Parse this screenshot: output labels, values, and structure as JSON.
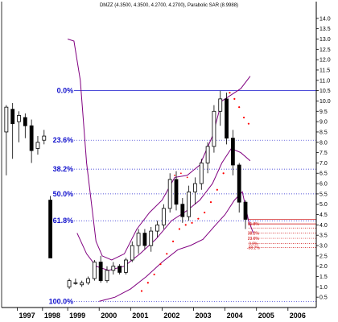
{
  "chart_data": {
    "type": "candlestick",
    "title": "DMZZ (4.3500, 4.3500, 4.2700, 4.2700), Parabolic SAR (8.9988)",
    "ylim": [
      0,
      14.5
    ],
    "y_ticks": [
      0.5,
      1.0,
      1.5,
      2.0,
      2.5,
      3.0,
      3.5,
      4.0,
      4.5,
      5.0,
      5.5,
      6.0,
      6.5,
      7.0,
      7.5,
      8.0,
      8.5,
      9.0,
      9.5,
      10.0,
      10.5,
      11.0,
      11.5,
      12.0,
      12.5,
      13.0,
      13.5,
      14.0
    ],
    "x_labels": [
      {
        "label": "1997",
        "t": 1997.4
      },
      {
        "label": "1998",
        "t": 1998.2
      },
      {
        "label": "1999",
        "t": 1999.0
      },
      {
        "label": "2000",
        "t": 2000.0
      },
      {
        "label": "2001",
        "t": 2001.0
      },
      {
        "label": "2002",
        "t": 2002.0
      },
      {
        "label": "2003",
        "t": 2003.0
      },
      {
        "label": "2004",
        "t": 2004.0
      },
      {
        "label": "2005",
        "t": 2005.0
      },
      {
        "label": "2006",
        "t": 2006.0
      }
    ],
    "xlim": [
      1996.9,
      2006.9
    ],
    "fib_levels": [
      {
        "label": "0.0%",
        "value": 10.5
      },
      {
        "label": "23.6%",
        "value": 8.1
      },
      {
        "label": "38.2%",
        "value": 6.7
      },
      {
        "label": "50.0%",
        "value": 5.5
      },
      {
        "label": "61.8%",
        "value": 4.2
      },
      {
        "label": "100.0%",
        "value": 0.3
      }
    ],
    "right_fib_labels": [
      {
        "label": "61.8%",
        "value": 4.05
      },
      {
        "label": "38.2%",
        "value": 3.6
      },
      {
        "label": "23.6%",
        "value": 3.35
      },
      {
        "label": "0.0%",
        "value": 3.1
      },
      {
        "label": "-38.2%",
        "value": 2.9
      }
    ],
    "candles": [
      {
        "t": 1997.05,
        "o": 8.5,
        "h": 9.8,
        "l": 6.4,
        "c": 9.7
      },
      {
        "t": 1997.25,
        "o": 9.6,
        "h": 9.9,
        "l": 7.2,
        "c": 8.9
      },
      {
        "t": 1997.45,
        "o": 9.0,
        "h": 9.5,
        "l": 8.0,
        "c": 9.3
      },
      {
        "t": 1997.65,
        "o": 9.2,
        "h": 9.4,
        "l": 8.2,
        "c": 8.8
      },
      {
        "t": 1997.85,
        "o": 8.8,
        "h": 9.1,
        "l": 7.0,
        "c": 7.6
      },
      {
        "t": 1998.05,
        "o": 7.7,
        "h": 8.3,
        "l": 7.4,
        "c": 8.0
      },
      {
        "t": 1998.25,
        "o": 8.1,
        "h": 8.6,
        "l": 7.9,
        "c": 8.3
      },
      {
        "t": 1998.45,
        "o": 5.2,
        "h": 5.4,
        "l": 2.4,
        "c": 2.4
      },
      {
        "t": 1999.05,
        "o": 1.0,
        "h": 1.4,
        "l": 0.9,
        "c": 1.3
      },
      {
        "t": 1999.25,
        "o": 1.2,
        "h": 1.4,
        "l": 1.1,
        "c": 1.2
      },
      {
        "t": 1999.45,
        "o": 1.1,
        "h": 1.3,
        "l": 1.0,
        "c": 1.2
      },
      {
        "t": 1999.65,
        "o": 1.2,
        "h": 1.5,
        "l": 1.1,
        "c": 1.4
      },
      {
        "t": 1999.85,
        "o": 1.4,
        "h": 2.3,
        "l": 1.3,
        "c": 2.2
      },
      {
        "t": 2000.05,
        "o": 2.2,
        "h": 2.5,
        "l": 1.2,
        "c": 1.3
      },
      {
        "t": 2000.25,
        "o": 1.3,
        "h": 2.0,
        "l": 1.2,
        "c": 1.8
      },
      {
        "t": 2000.45,
        "o": 1.8,
        "h": 2.2,
        "l": 1.6,
        "c": 2.0
      },
      {
        "t": 2000.65,
        "o": 2.0,
        "h": 2.1,
        "l": 1.6,
        "c": 1.7
      },
      {
        "t": 2000.85,
        "o": 1.7,
        "h": 2.4,
        "l": 1.6,
        "c": 2.3
      },
      {
        "t": 2001.05,
        "o": 2.3,
        "h": 3.2,
        "l": 2.2,
        "c": 3.0
      },
      {
        "t": 2001.25,
        "o": 3.0,
        "h": 3.8,
        "l": 2.6,
        "c": 3.6
      },
      {
        "t": 2001.45,
        "o": 3.6,
        "h": 3.8,
        "l": 2.8,
        "c": 3.0
      },
      {
        "t": 2001.65,
        "o": 3.0,
        "h": 3.9,
        "l": 2.7,
        "c": 3.7
      },
      {
        "t": 2001.85,
        "o": 3.7,
        "h": 4.2,
        "l": 3.4,
        "c": 4.0
      },
      {
        "t": 2002.05,
        "o": 4.0,
        "h": 5.0,
        "l": 3.8,
        "c": 4.8
      },
      {
        "t": 2002.25,
        "o": 4.8,
        "h": 6.5,
        "l": 4.6,
        "c": 6.2
      },
      {
        "t": 2002.45,
        "o": 6.2,
        "h": 6.6,
        "l": 4.7,
        "c": 5.0
      },
      {
        "t": 2002.65,
        "o": 5.0,
        "h": 5.3,
        "l": 4.1,
        "c": 4.4
      },
      {
        "t": 2002.85,
        "o": 4.4,
        "h": 5.9,
        "l": 4.2,
        "c": 5.6
      },
      {
        "t": 2003.05,
        "o": 5.6,
        "h": 6.3,
        "l": 5.0,
        "c": 6.0
      },
      {
        "t": 2003.25,
        "o": 6.0,
        "h": 7.2,
        "l": 5.7,
        "c": 7.0
      },
      {
        "t": 2003.45,
        "o": 7.0,
        "h": 8.0,
        "l": 6.5,
        "c": 7.8
      },
      {
        "t": 2003.65,
        "o": 7.8,
        "h": 9.8,
        "l": 7.5,
        "c": 9.5
      },
      {
        "t": 2003.85,
        "o": 9.5,
        "h": 10.5,
        "l": 8.8,
        "c": 10.1
      },
      {
        "t": 2004.05,
        "o": 10.1,
        "h": 10.4,
        "l": 7.9,
        "c": 8.2
      },
      {
        "t": 2004.25,
        "o": 8.2,
        "h": 8.6,
        "l": 6.4,
        "c": 6.9
      },
      {
        "t": 2004.45,
        "o": 6.9,
        "h": 7.0,
        "l": 4.6,
        "c": 5.1
      },
      {
        "t": 2004.65,
        "o": 5.1,
        "h": 5.2,
        "l": 3.8,
        "c": 4.27
      }
    ],
    "upper_band": [
      {
        "t": 1999.0,
        "v": 13.0
      },
      {
        "t": 1999.2,
        "v": 12.9
      },
      {
        "t": 1999.4,
        "v": 11.0
      },
      {
        "t": 1999.6,
        "v": 7.0
      },
      {
        "t": 1999.9,
        "v": 3.2
      },
      {
        "t": 2000.1,
        "v": 2.5
      },
      {
        "t": 2000.4,
        "v": 2.3
      },
      {
        "t": 2000.8,
        "v": 2.6
      },
      {
        "t": 2001.2,
        "v": 3.8
      },
      {
        "t": 2001.6,
        "v": 4.6
      },
      {
        "t": 2002.0,
        "v": 5.2
      },
      {
        "t": 2002.4,
        "v": 6.3
      },
      {
        "t": 2002.8,
        "v": 6.4
      },
      {
        "t": 2003.2,
        "v": 6.9
      },
      {
        "t": 2003.6,
        "v": 8.3
      },
      {
        "t": 2003.9,
        "v": 10.0
      },
      {
        "t": 2004.2,
        "v": 10.3
      },
      {
        "t": 2004.5,
        "v": 10.6
      },
      {
        "t": 2004.8,
        "v": 11.2
      }
    ],
    "middle_band": [
      {
        "t": 1999.3,
        "v": 3.6
      },
      {
        "t": 1999.6,
        "v": 2.6
      },
      {
        "t": 1999.9,
        "v": 2.0
      },
      {
        "t": 2000.3,
        "v": 1.8
      },
      {
        "t": 2000.8,
        "v": 2.0
      },
      {
        "t": 2001.3,
        "v": 2.6
      },
      {
        "t": 2001.8,
        "v": 3.3
      },
      {
        "t": 2002.3,
        "v": 4.2
      },
      {
        "t": 2002.8,
        "v": 4.7
      },
      {
        "t": 2003.2,
        "v": 5.2
      },
      {
        "t": 2003.6,
        "v": 6.0
      },
      {
        "t": 2003.9,
        "v": 7.0
      },
      {
        "t": 2004.2,
        "v": 7.7
      },
      {
        "t": 2004.5,
        "v": 7.5
      },
      {
        "t": 2004.8,
        "v": 7.1
      }
    ],
    "lower_band": [
      {
        "t": 2000.0,
        "v": 0.3
      },
      {
        "t": 2000.5,
        "v": 0.5
      },
      {
        "t": 2001.0,
        "v": 0.9
      },
      {
        "t": 2001.5,
        "v": 1.5
      },
      {
        "t": 2002.0,
        "v": 2.2
      },
      {
        "t": 2002.5,
        "v": 2.8
      },
      {
        "t": 2002.9,
        "v": 3.0
      },
      {
        "t": 2003.3,
        "v": 3.3
      },
      {
        "t": 2003.7,
        "v": 4.0
      },
      {
        "t": 2004.0,
        "v": 4.5
      },
      {
        "t": 2004.3,
        "v": 5.2
      },
      {
        "t": 2004.55,
        "v": 5.6
      },
      {
        "t": 2004.75,
        "v": 4.2
      },
      {
        "t": 2004.9,
        "v": 3.6
      }
    ],
    "sar": [
      {
        "t": 2001.35,
        "v": 0.8
      },
      {
        "t": 2001.55,
        "v": 1.2
      },
      {
        "t": 2001.75,
        "v": 1.6
      },
      {
        "t": 2001.95,
        "v": 2.1
      },
      {
        "t": 2002.15,
        "v": 2.6
      },
      {
        "t": 2002.35,
        "v": 3.2
      },
      {
        "t": 2002.55,
        "v": 3.8
      },
      {
        "t": 2002.75,
        "v": 4.0
      },
      {
        "t": 2002.95,
        "v": 4.1
      },
      {
        "t": 2003.15,
        "v": 4.3
      },
      {
        "t": 2003.35,
        "v": 4.6
      },
      {
        "t": 2003.55,
        "v": 5.1
      },
      {
        "t": 2003.75,
        "v": 5.7
      },
      {
        "t": 2003.95,
        "v": 6.5
      },
      {
        "t": 2004.15,
        "v": 10.4
      },
      {
        "t": 2004.3,
        "v": 10.1
      },
      {
        "t": 2004.45,
        "v": 9.7
      },
      {
        "t": 2004.6,
        "v": 9.2
      },
      {
        "t": 2004.75,
        "v": 8.9
      }
    ],
    "dotted_markers": [
      {
        "t": 2002.4,
        "v": 6.4
      },
      {
        "t": 2002.6,
        "v": 6.5
      },
      {
        "t": 2002.8,
        "v": 6.3
      }
    ],
    "projection_levels": [
      4.27,
      4.05,
      3.85,
      3.6,
      3.35,
      3.1,
      2.9
    ],
    "grid": false,
    "legend": "none",
    "colors": {
      "candle": "#000000",
      "band": "#800080",
      "sar": "#ff0000",
      "fib": "#1010cc",
      "projection": "#cc0000"
    }
  }
}
